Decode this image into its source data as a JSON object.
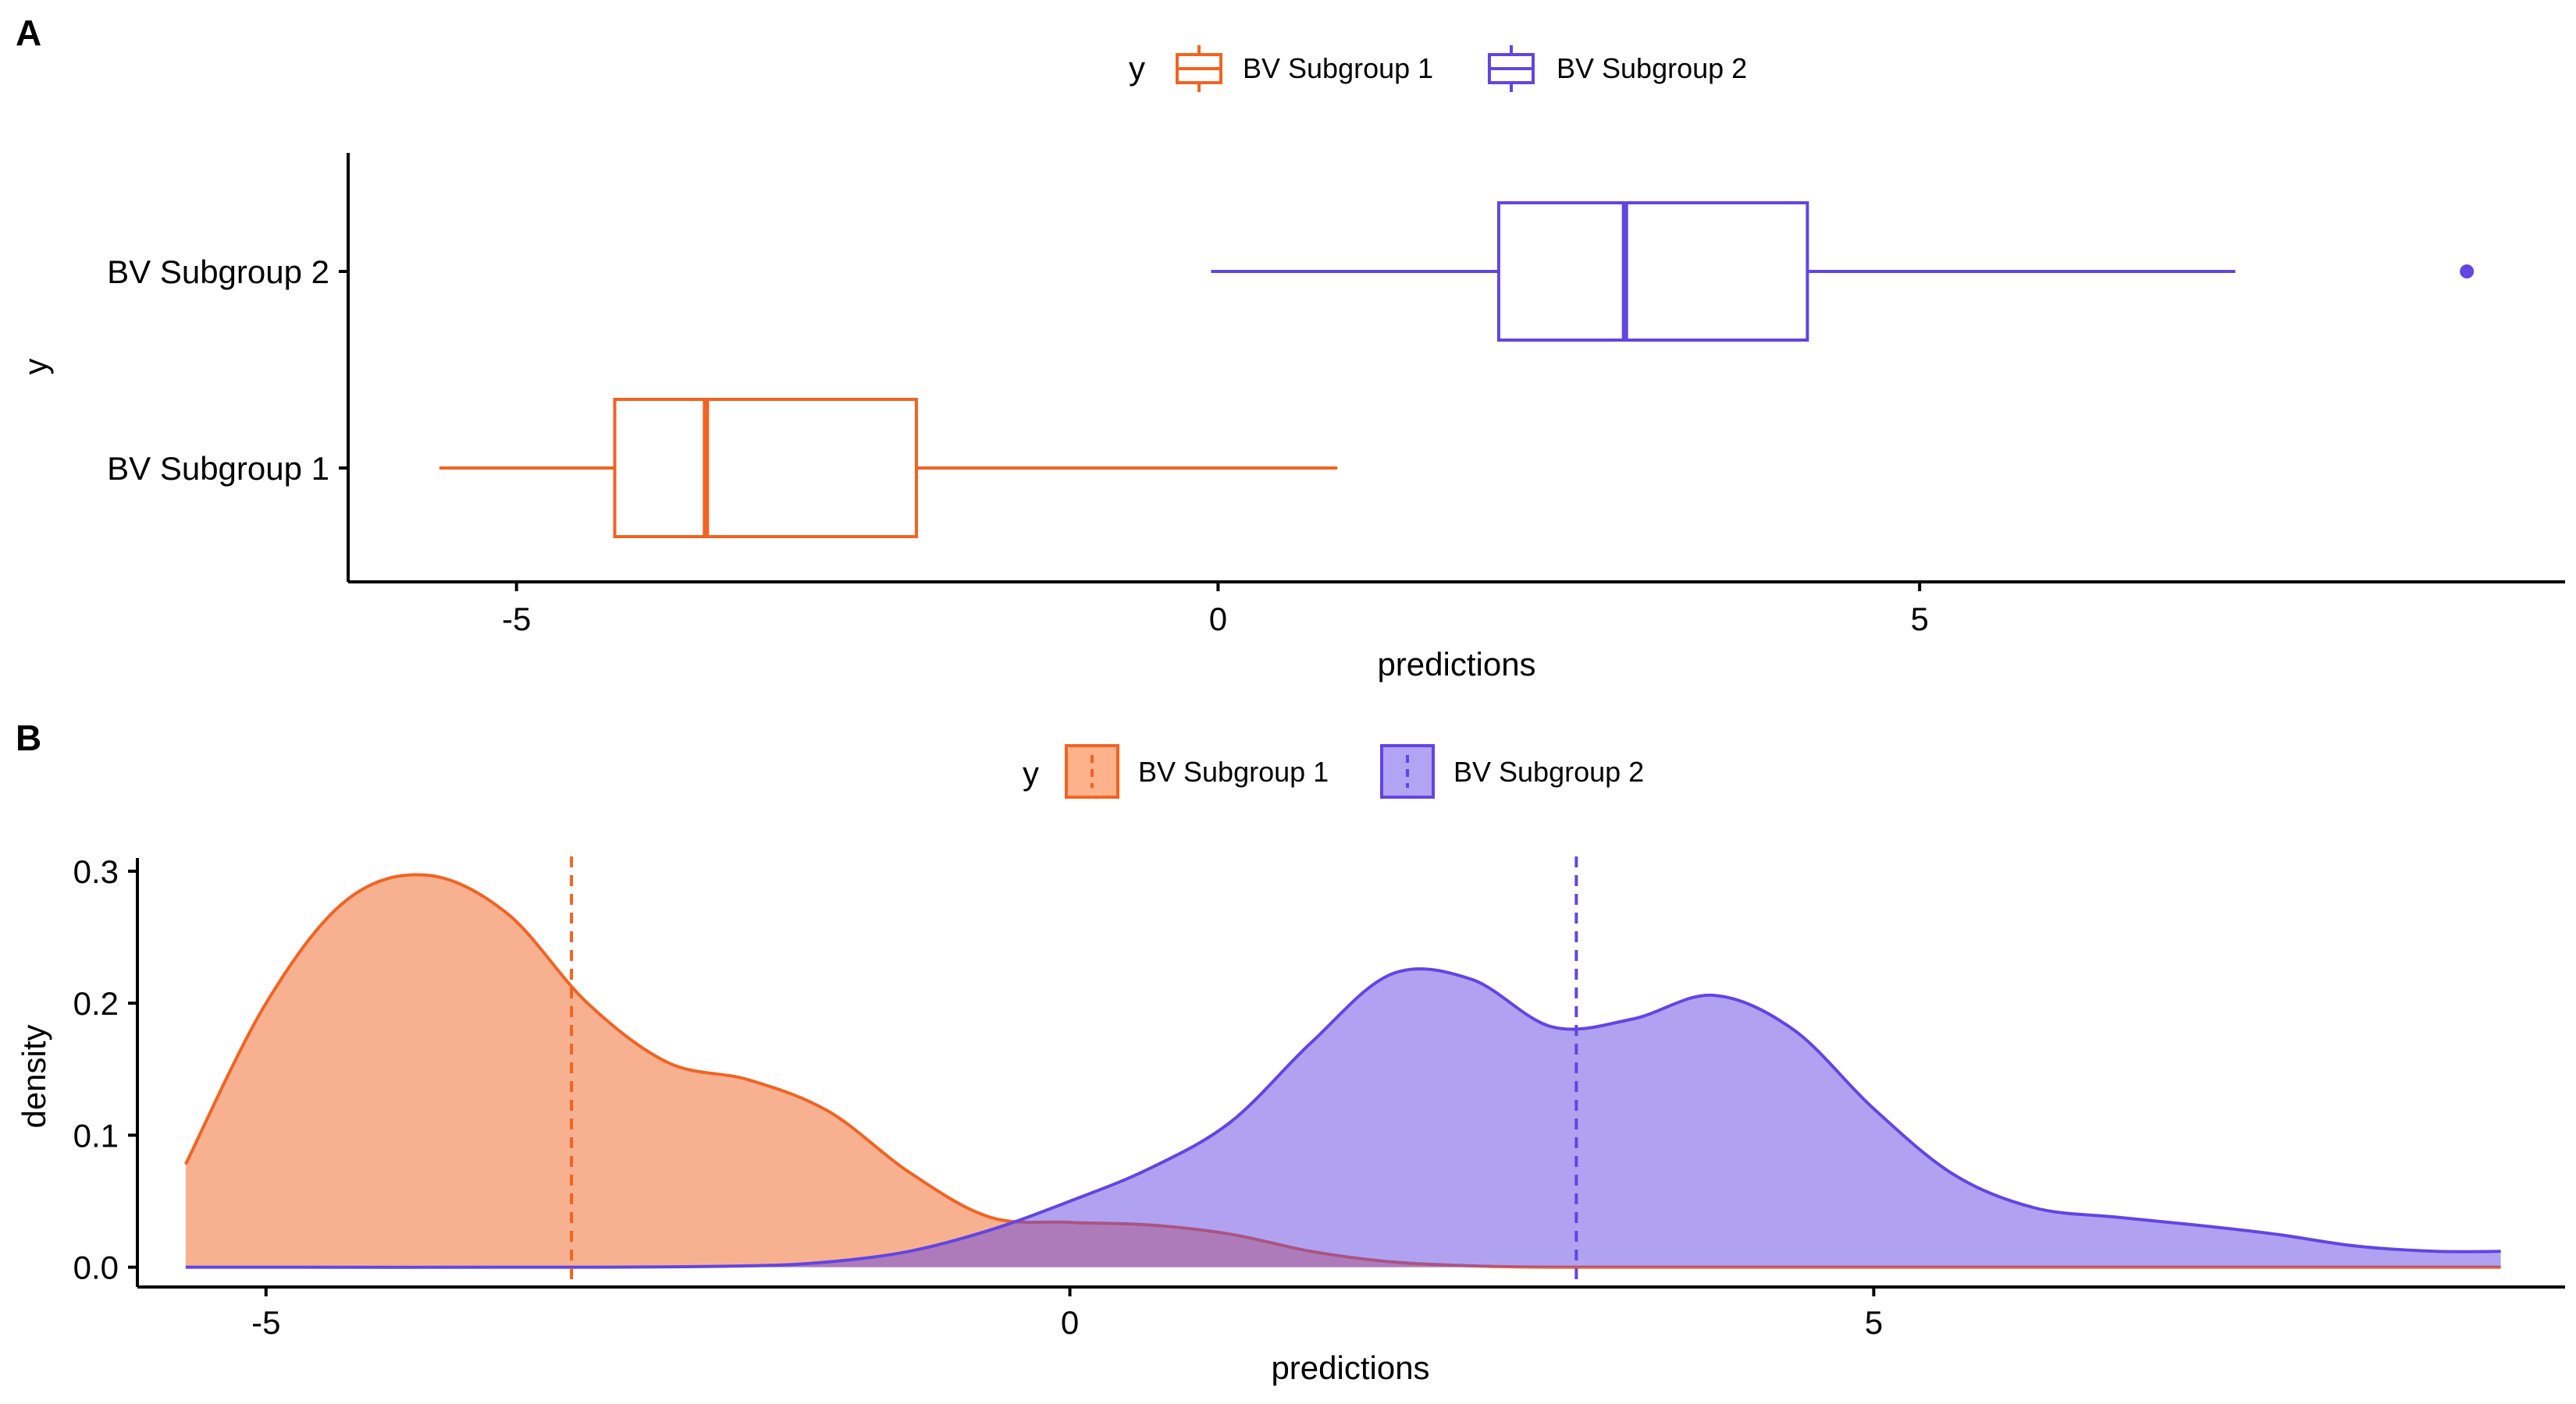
{
  "colors": {
    "subgroup1": "#f26322",
    "subgroup1_fill": "#fdb28c",
    "subgroup2": "#6245e3",
    "subgroup2_fill": "#b0a4f3",
    "axis": "#000000"
  },
  "chart_data": [
    {
      "panel": "A",
      "type": "boxplot",
      "orientation": "horizontal",
      "xlabel": "predictions",
      "ylabel": "y",
      "xlim": [
        -6.2,
        9.6
      ],
      "x_ticks": [
        -5,
        0,
        5
      ],
      "x_tick_labels": [
        "-5",
        "0",
        "5"
      ],
      "legend": {
        "title": "y",
        "position": "top",
        "items": [
          "BV Subgroup 1",
          "BV Subgroup 2"
        ]
      },
      "categories": [
        "BV Subgroup 1",
        "BV Subgroup 2"
      ],
      "series": [
        {
          "name": "BV Subgroup 1",
          "whisker_low": -5.55,
          "q1": -4.3,
          "median": -3.65,
          "q3": -2.15,
          "whisker_high": 0.85,
          "outliers": []
        },
        {
          "name": "BV Subgroup 2",
          "whisker_low": -0.05,
          "q1": 2.0,
          "median": 2.9,
          "q3": 4.2,
          "whisker_high": 7.25,
          "outliers": [
            8.9
          ]
        }
      ]
    },
    {
      "panel": "B",
      "type": "area",
      "subtype": "density",
      "xlabel": "predictions",
      "ylabel": "density",
      "xlim": [
        -5.8,
        9.3
      ],
      "ylim": [
        -0.015,
        0.31
      ],
      "x_ticks": [
        -5,
        0,
        5
      ],
      "x_tick_labels": [
        "-5",
        "0",
        "5"
      ],
      "y_ticks": [
        0.0,
        0.1,
        0.2,
        0.3
      ],
      "y_tick_labels": [
        "0.0",
        "0.1",
        "0.2",
        "0.3"
      ],
      "legend": {
        "title": "y",
        "position": "top",
        "items": [
          "BV Subgroup 1",
          "BV Subgroup 2"
        ]
      },
      "series": [
        {
          "name": "BV Subgroup 1",
          "mean": -3.1,
          "x": [
            -5.5,
            -5.0,
            -4.5,
            -4.0,
            -3.5,
            -3.0,
            -2.5,
            -2.0,
            -1.5,
            -1.0,
            -0.5,
            0.0,
            0.5,
            1.0,
            1.5,
            2.0,
            2.5,
            3.0,
            4.0,
            6.0,
            8.9
          ],
          "y": [
            0.078,
            0.2,
            0.278,
            0.297,
            0.268,
            0.2,
            0.155,
            0.142,
            0.118,
            0.072,
            0.038,
            0.034,
            0.032,
            0.025,
            0.012,
            0.004,
            0.001,
            0.0,
            0.0,
            0.0,
            0.0
          ]
        },
        {
          "name": "BV Subgroup 2",
          "mean": 3.15,
          "x": [
            -5.5,
            -3.0,
            -2.0,
            -1.5,
            -1.0,
            -0.5,
            0.0,
            0.5,
            1.0,
            1.5,
            2.0,
            2.5,
            3.0,
            3.5,
            4.0,
            4.5,
            5.0,
            5.5,
            6.0,
            6.5,
            7.0,
            7.5,
            8.0,
            8.5,
            8.9
          ],
          "y": [
            0.0,
            0.0,
            0.001,
            0.004,
            0.012,
            0.028,
            0.05,
            0.075,
            0.11,
            0.17,
            0.222,
            0.218,
            0.182,
            0.188,
            0.206,
            0.18,
            0.12,
            0.07,
            0.045,
            0.038,
            0.032,
            0.025,
            0.016,
            0.012,
            0.012
          ]
        }
      ]
    }
  ]
}
